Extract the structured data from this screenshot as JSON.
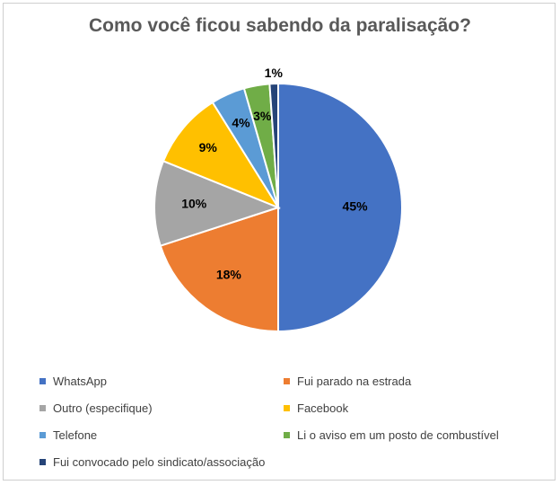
{
  "chart_data": {
    "type": "pie",
    "title": "Como você ficou sabendo da paralisação?",
    "slices": [
      {
        "name": "WhatsApp",
        "value": 45,
        "label": "45%",
        "color": "#4472C4"
      },
      {
        "name": "Fui parado na estrada",
        "value": 18,
        "label": "18%",
        "color": "#ED7D31"
      },
      {
        "name": "Outro (especifique)",
        "value": 10,
        "label": "10%",
        "color": "#A5A5A5"
      },
      {
        "name": "Facebook",
        "value": 9,
        "label": "9%",
        "color": "#FFC000"
      },
      {
        "name": "Telefone",
        "value": 4,
        "label": "4%",
        "color": "#5B9BD5"
      },
      {
        "name": "Li o aviso em um posto de combustível",
        "value": 3,
        "label": "3%",
        "color": "#70AD47"
      },
      {
        "name": "Fui convocado pelo sindicato/associação",
        "value": 1,
        "label": "1%",
        "color": "#264478"
      }
    ],
    "legend_position": "bottom"
  }
}
